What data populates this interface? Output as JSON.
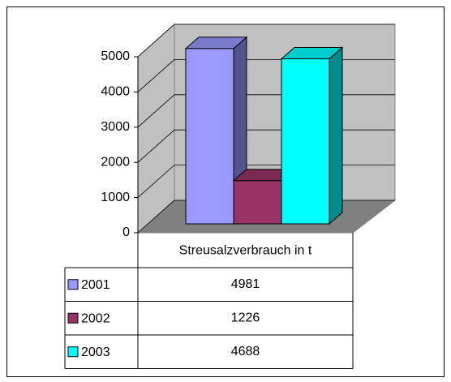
{
  "chart_data": {
    "type": "bar3d",
    "categories": [
      "Streusalzverbrauch in t"
    ],
    "series": [
      {
        "name": "2001",
        "color": "#9999ff",
        "values": [
          4981
        ]
      },
      {
        "name": "2002",
        "color": "#993366",
        "values": [
          1226
        ]
      },
      {
        "name": "2003",
        "color": "#00ffff",
        "values": [
          4688
        ]
      }
    ],
    "ylim": [
      0,
      5000
    ],
    "yticks": [
      0,
      1000,
      2000,
      3000,
      4000,
      5000
    ],
    "grid": true
  }
}
